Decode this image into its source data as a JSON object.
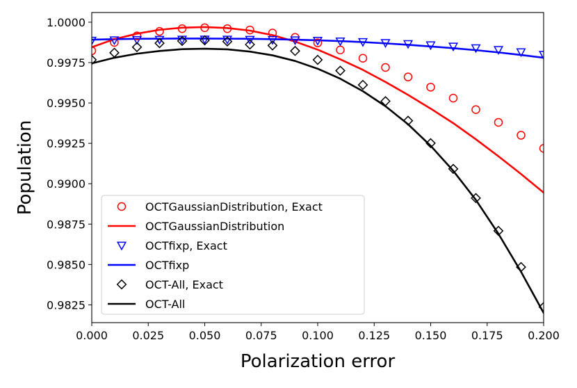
{
  "chart_data": {
    "type": "line",
    "xlabel": "Polarization error",
    "ylabel": "Population",
    "xlim": [
      0.0,
      0.2
    ],
    "ylim": [
      0.9814,
      1.0006
    ],
    "xticks": [
      0.0,
      0.025,
      0.05,
      0.075,
      0.1,
      0.125,
      0.15,
      0.175,
      0.2
    ],
    "xtick_labels": [
      "0.000",
      "0.025",
      "0.050",
      "0.075",
      "0.100",
      "0.125",
      "0.150",
      "0.175",
      "0.200"
    ],
    "yticks": [
      0.9825,
      0.985,
      0.9875,
      0.99,
      0.9925,
      0.995,
      0.9975,
      1.0
    ],
    "ytick_labels": [
      "0.9825",
      "0.9850",
      "0.9875",
      "0.9900",
      "0.9925",
      "0.9950",
      "0.9975",
      "1.0000"
    ],
    "grid": false,
    "legend_position": "lower-left",
    "series": [
      {
        "name": "OCTGaussianDistribution, Exact",
        "kind": "marker",
        "marker": "circle",
        "color": "#ff0000",
        "x": [
          0.0,
          0.01,
          0.02,
          0.03,
          0.04,
          0.05,
          0.06,
          0.07,
          0.08,
          0.09,
          0.1,
          0.11,
          0.12,
          0.13,
          0.14,
          0.15,
          0.16,
          0.17,
          0.18,
          0.19,
          0.2
        ],
        "y": [
          0.99823,
          0.99875,
          0.99915,
          0.99943,
          0.9996,
          0.99966,
          0.9996,
          0.99952,
          0.99933,
          0.99906,
          0.99872,
          0.99828,
          0.99777,
          0.9972,
          0.99661,
          0.99598,
          0.9953,
          0.99459,
          0.9938,
          0.993,
          0.99219
        ]
      },
      {
        "name": "OCTGaussianDistribution",
        "kind": "line",
        "color": "#ff0000",
        "x": [
          0.0,
          0.01,
          0.02,
          0.03,
          0.04,
          0.05,
          0.06,
          0.07,
          0.08,
          0.09,
          0.1,
          0.11,
          0.12,
          0.13,
          0.14,
          0.15,
          0.16,
          0.17,
          0.18,
          0.19,
          0.2
        ],
        "y": [
          0.99845,
          0.99895,
          0.99929,
          0.99953,
          0.99966,
          0.9997,
          0.99964,
          0.99948,
          0.9992,
          0.9988,
          0.9983,
          0.9977,
          0.99705,
          0.9963,
          0.9955,
          0.99465,
          0.99375,
          0.99275,
          0.9917,
          0.9906,
          0.98945
        ]
      },
      {
        "name": "OCTfixp, Exact",
        "kind": "marker",
        "marker": "triangle-down",
        "color": "#0000ff",
        "x": [
          0.0,
          0.01,
          0.02,
          0.03,
          0.04,
          0.05,
          0.06,
          0.07,
          0.08,
          0.09,
          0.1,
          0.11,
          0.12,
          0.13,
          0.14,
          0.15,
          0.16,
          0.17,
          0.18,
          0.19,
          0.2
        ],
        "y": [
          0.99887,
          0.99889,
          0.99891,
          0.99892,
          0.99893,
          0.99894,
          0.99893,
          0.99892,
          0.99891,
          0.99889,
          0.99886,
          0.99882,
          0.99878,
          0.99872,
          0.99866,
          0.99858,
          0.9985,
          0.9984,
          0.99829,
          0.99815,
          0.99799
        ]
      },
      {
        "name": "OCTfixp",
        "kind": "line",
        "color": "#0000ff",
        "x": [
          0.0,
          0.01,
          0.02,
          0.03,
          0.04,
          0.05,
          0.06,
          0.07,
          0.08,
          0.09,
          0.1,
          0.11,
          0.12,
          0.13,
          0.14,
          0.15,
          0.16,
          0.17,
          0.18,
          0.19,
          0.2
        ],
        "y": [
          0.99892,
          0.99895,
          0.99897,
          0.99898,
          0.99899,
          0.99899,
          0.99898,
          0.99897,
          0.99895,
          0.99892,
          0.99888,
          0.99883,
          0.99877,
          0.99869,
          0.9986,
          0.9985,
          0.99839,
          0.99827,
          0.99813,
          0.99797,
          0.9978
        ]
      },
      {
        "name": "OCT-All, Exact",
        "kind": "marker",
        "marker": "diamond",
        "color": "#000000",
        "x": [
          0.0,
          0.01,
          0.02,
          0.03,
          0.04,
          0.05,
          0.06,
          0.07,
          0.08,
          0.09,
          0.1,
          0.11,
          0.12,
          0.13,
          0.14,
          0.15,
          0.16,
          0.17,
          0.18,
          0.19,
          0.2
        ],
        "y": [
          0.99767,
          0.99811,
          0.99846,
          0.9987,
          0.99884,
          0.99888,
          0.99881,
          0.99862,
          0.99856,
          0.99822,
          0.99767,
          0.997,
          0.99612,
          0.99511,
          0.9939,
          0.99251,
          0.99092,
          0.98911,
          0.98708,
          0.98484,
          0.98237
        ]
      },
      {
        "name": "OCT-All",
        "kind": "line",
        "color": "#000000",
        "x": [
          0.0,
          0.01,
          0.02,
          0.03,
          0.04,
          0.05,
          0.06,
          0.07,
          0.08,
          0.09,
          0.1,
          0.11,
          0.12,
          0.13,
          0.14,
          0.15,
          0.16,
          0.17,
          0.18,
          0.19,
          0.2
        ],
        "y": [
          0.99745,
          0.9978,
          0.99805,
          0.99822,
          0.99833,
          0.99836,
          0.99832,
          0.99818,
          0.99795,
          0.9976,
          0.99712,
          0.9965,
          0.99573,
          0.9948,
          0.99368,
          0.99235,
          0.9908,
          0.989,
          0.9869,
          0.98455,
          0.982
        ]
      }
    ]
  }
}
